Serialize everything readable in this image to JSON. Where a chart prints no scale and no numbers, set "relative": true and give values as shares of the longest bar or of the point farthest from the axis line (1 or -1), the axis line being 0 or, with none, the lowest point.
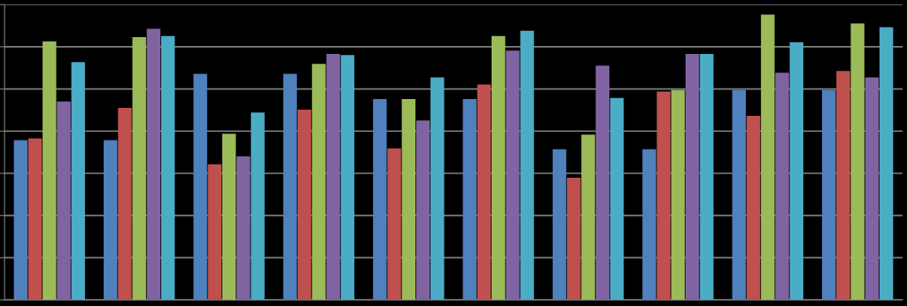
{
  "chart_data": {
    "type": "bar",
    "relative": true,
    "grid": "y",
    "legend": false,
    "categories": [
      null,
      null,
      null,
      null,
      null,
      null,
      null,
      null,
      null,
      null
    ],
    "series": [
      {
        "color": "#4f81bd",
        "values": [
          0.56,
          0.56,
          0.792,
          0.792,
          0.704,
          0.704,
          0.528,
          0.528,
          0.736,
          0.736
        ]
      },
      {
        "color": "#c0504d",
        "values": [
          0.566,
          0.673,
          0.475,
          0.667,
          0.531,
          0.755,
          0.428,
          0.73,
          0.645,
          0.802
        ]
      },
      {
        "color": "#9bbb59",
        "values": [
          0.906,
          0.921,
          0.582,
          0.827,
          0.704,
          0.925,
          0.579,
          0.736,
          1,
          0.969
        ]
      },
      {
        "color": "#8064a2",
        "values": [
          0.695,
          0.95,
          0.503,
          0.862,
          0.629,
          0.874,
          0.821,
          0.862,
          0.796,
          0.78
        ]
      },
      {
        "color": "#4bacc6",
        "values": [
          0.833,
          0.925,
          0.657,
          0.858,
          0.78,
          0.943,
          0.708,
          0.862,
          0.903,
          0.956
        ]
      }
    ]
  }
}
